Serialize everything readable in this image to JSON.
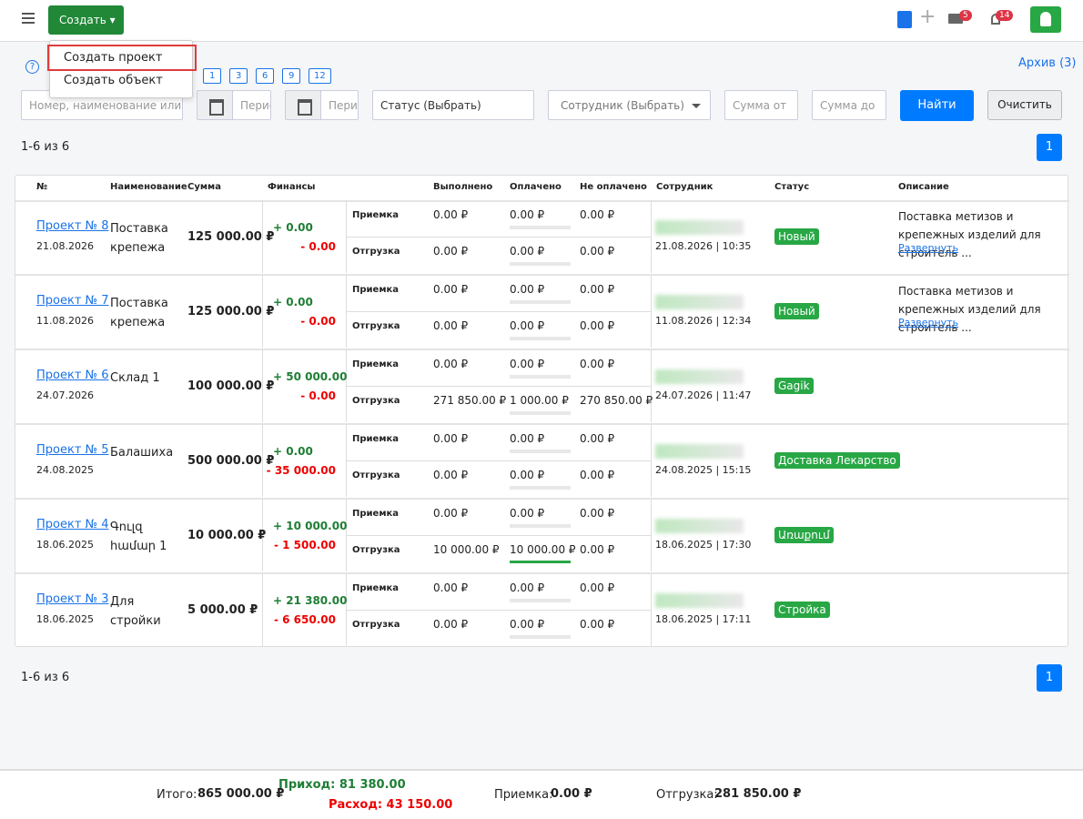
{
  "header": {
    "create_button": "Создать",
    "mail_badge": "5",
    "bell_badge": "14"
  },
  "dropdown": {
    "items": [
      "Создать проект",
      "Создать объект"
    ]
  },
  "help": "?",
  "periods": [
    "1",
    "3",
    "6",
    "9",
    "12"
  ],
  "archive": "Архив (3)",
  "filters": {
    "search": "Номер, наименование или",
    "date_from": "Период",
    "date_to": "Период",
    "status": "Статус (Выбрать)",
    "employee": "Сотрудник (Выбрать)",
    "sum_from": "Сумма от",
    "sum_to": "Сумма до",
    "find": "Найти",
    "clear": "Очистить"
  },
  "counter_top": "1-6 из 6",
  "counter_bottom": "1-6 из 6",
  "page_top": "1",
  "page_bottom": "1",
  "table": {
    "headers": [
      "№",
      "Наименование",
      "Сумма",
      "Финансы",
      "Выполнено",
      "Оплачено",
      "Не оплачено",
      "Сотрудник",
      "Статус",
      "Описание"
    ],
    "sub_labels": [
      "Приемка",
      "Отгрузка"
    ],
    "rows": [
      {
        "project": "Проект № 8",
        "date": "21.08.2026",
        "name": "Поставка крепежа",
        "sum": "125 000.00 ₽",
        "income": "+ 0.00",
        "expense": "- 0.00",
        "receipt": [
          "0.00 ₽",
          "0.00 ₽",
          "0.00 ₽"
        ],
        "shipment": [
          "0.00 ₽",
          "0.00 ₽",
          "0.00 ₽"
        ],
        "employee_time": "21.08.2026 | 10:35",
        "status": "Новый",
        "description": "Поставка метизов и крепежных изделий для строитель ...",
        "expand": "Развернуть"
      },
      {
        "project": "Проект № 7",
        "date": "11.08.2026",
        "name": "Поставка крепежа",
        "sum": "125 000.00 ₽",
        "income": "+ 0.00",
        "expense": "- 0.00",
        "receipt": [
          "0.00 ₽",
          "0.00 ₽",
          "0.00 ₽"
        ],
        "shipment": [
          "0.00 ₽",
          "0.00 ₽",
          "0.00 ₽"
        ],
        "employee_time": "11.08.2026 | 12:34",
        "status": "Новый",
        "description": "Поставка метизов и крепежных изделий для строитель ...",
        "expand": "Развернуть"
      },
      {
        "project": "Проект № 6",
        "date": "24.07.2026",
        "name": "Склад 1",
        "sum": "100 000.00 ₽",
        "income": "+ 50 000.00",
        "expense": "- 0.00",
        "receipt": [
          "0.00 ₽",
          "0.00 ₽",
          "0.00 ₽"
        ],
        "shipment": [
          "271 850.00 ₽",
          "1 000.00 ₽",
          "270 850.00 ₽"
        ],
        "employee_time": "24.07.2026 | 11:47",
        "status": "Gagik"
      },
      {
        "project": "Проект № 5",
        "date": "24.08.2025",
        "name": "Балашиха",
        "sum": "500 000.00 ₽",
        "income": "+ 0.00",
        "expense": "- 35 000.00",
        "receipt": [
          "0.00 ₽",
          "0.00 ₽",
          "0.00 ₽"
        ],
        "shipment": [
          "0.00 ₽",
          "0.00 ₽",
          "0.00 ₽"
        ],
        "employee_time": "24.08.2025 | 15:15",
        "status": "Доставка Лекарство"
      },
      {
        "project": "Проект № 4",
        "date": "18.06.2025",
        "name": "Գուլզ համար 1",
        "sum": "10 000.00 ₽",
        "income": "+ 10 000.00",
        "expense": "- 1 500.00",
        "receipt": [
          "0.00 ₽",
          "0.00 ₽",
          "0.00 ₽"
        ],
        "shipment": [
          "10 000.00 ₽",
          "10 000.00 ₽",
          "0.00 ₽"
        ],
        "employee_time": "18.06.2025 | 17:30",
        "status": "Առաքում"
      },
      {
        "project": "Проект № 3",
        "date": "18.06.2025",
        "name": "Для стройки",
        "sum": "5 000.00 ₽",
        "income": "+ 21 380.00",
        "expense": "- 6 650.00",
        "receipt": [
          "0.00 ₽",
          "0.00 ₽",
          "0.00 ₽"
        ],
        "shipment": [
          "0.00 ₽",
          "0.00 ₽",
          "0.00 ₽"
        ],
        "employee_time": "18.06.2025 | 17:11",
        "status": "Стройка"
      }
    ]
  },
  "footer": {
    "total_label": "Итого:",
    "total": "865 000.00 ₽",
    "income": "Приход: 81 380.00",
    "expense": "Расход: 43 150.00",
    "receipt_label": "Приемка:",
    "receipt": "0.00 ₽",
    "shipment_label": "Отгрузка:",
    "shipment": "281 850.00 ₽"
  }
}
